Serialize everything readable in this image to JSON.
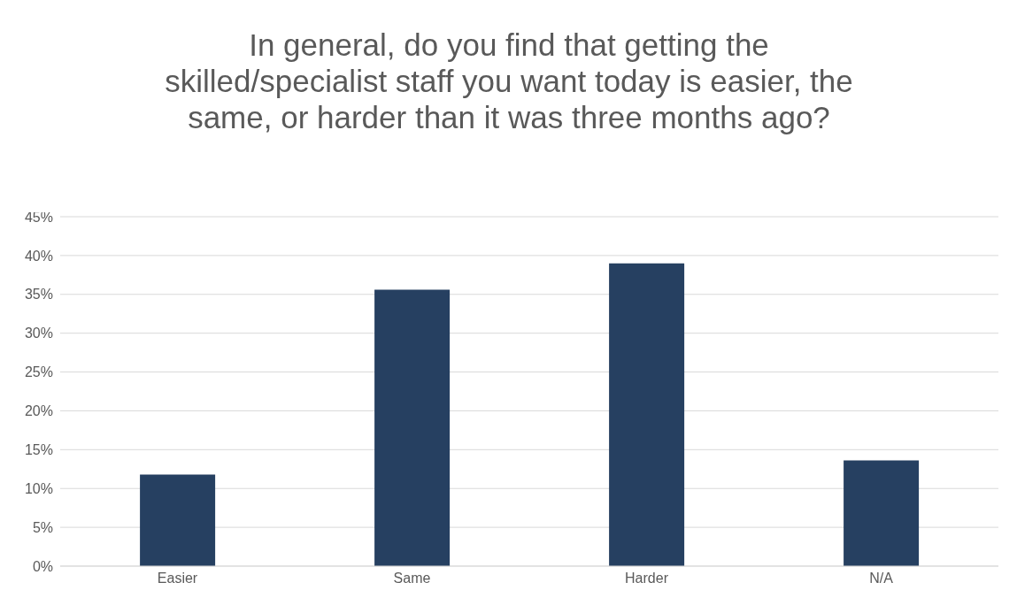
{
  "chart_data": {
    "type": "bar",
    "title": "In general, do you find that getting the skilled/specialist staff you want today is easier, the same, or harder than it was three months ago?",
    "categories": [
      "Easier",
      "Same",
      "Harder",
      "N/A"
    ],
    "values": [
      11.8,
      35.6,
      39.0,
      13.6
    ],
    "color": "#264061",
    "ylim": [
      0,
      45
    ],
    "yticks": [
      {
        "value": 0,
        "label": "0%"
      },
      {
        "value": 5,
        "label": "5%"
      },
      {
        "value": 10,
        "label": "10%"
      },
      {
        "value": 15,
        "label": "15%"
      },
      {
        "value": 20,
        "label": "20%"
      },
      {
        "value": 25,
        "label": "25%"
      },
      {
        "value": 30,
        "label": "30%"
      },
      {
        "value": 35,
        "label": "35%"
      },
      {
        "value": 40,
        "label": "40%"
      },
      {
        "value": 45,
        "label": "45%"
      }
    ],
    "grid": "y",
    "legend": false
  }
}
